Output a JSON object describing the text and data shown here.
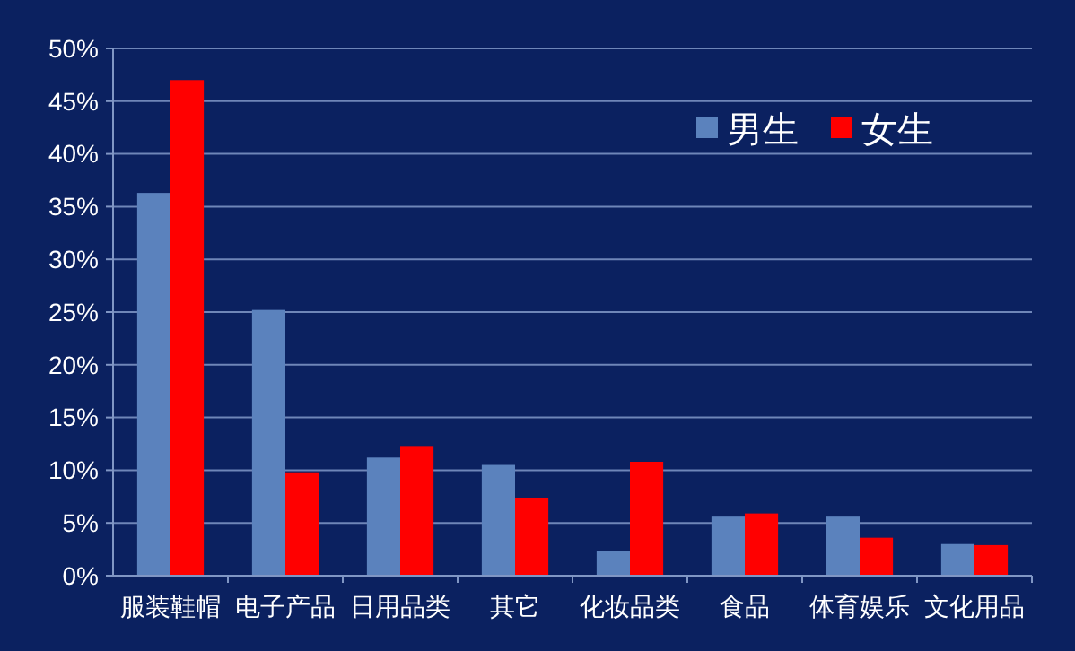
{
  "chart_data": {
    "type": "bar",
    "categories": [
      "服装鞋帽",
      "电子产品",
      "日用品类",
      "其它",
      "化妆品类",
      "食品",
      "体育娱乐",
      "文化用品"
    ],
    "series": [
      {
        "name": "男生",
        "color": "#5b82bd",
        "values": [
          36.3,
          25.2,
          11.2,
          10.5,
          2.3,
          5.6,
          5.6,
          3.0
        ]
      },
      {
        "name": "女生",
        "color": "#ff0000",
        "values": [
          47.0,
          9.8,
          12.3,
          7.4,
          10.8,
          5.9,
          3.6,
          2.9
        ]
      }
    ],
    "ylim": [
      0,
      50
    ],
    "yticks": [
      {
        "value": 0,
        "label": "0%"
      },
      {
        "value": 5,
        "label": "5%"
      },
      {
        "value": 10,
        "label": "10%"
      },
      {
        "value": 15,
        "label": "15%"
      },
      {
        "value": 20,
        "label": "20%"
      },
      {
        "value": 25,
        "label": "25%"
      },
      {
        "value": 30,
        "label": "30%"
      },
      {
        "value": 35,
        "label": "35%"
      },
      {
        "value": 40,
        "label": "40%"
      },
      {
        "value": 45,
        "label": "45%"
      },
      {
        "value": 50,
        "label": "50%"
      }
    ],
    "grid": "y",
    "legend": "top right"
  }
}
